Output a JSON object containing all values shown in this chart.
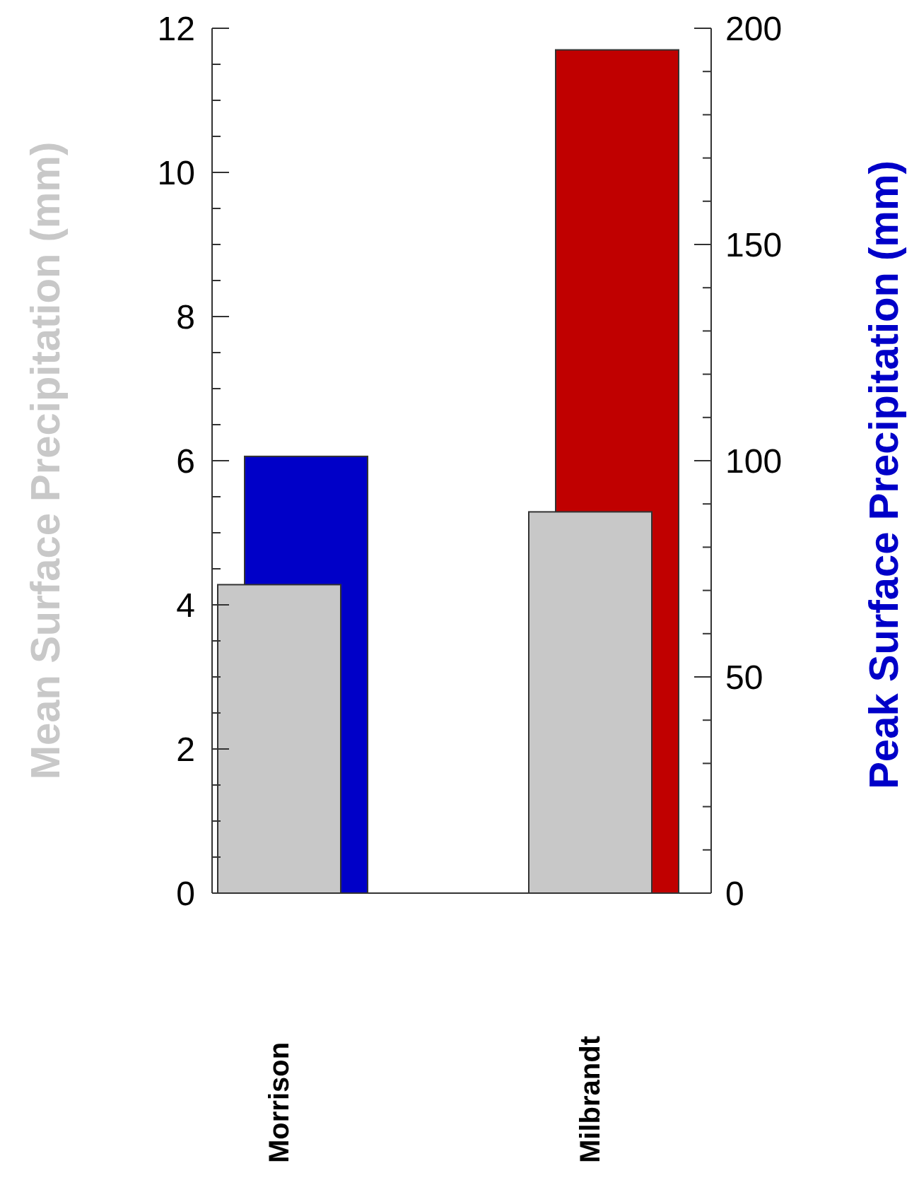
{
  "chart_data": {
    "type": "bar",
    "categories": [
      "Morrison",
      "Milbrandt"
    ],
    "series": [
      {
        "color": "#c8c8c8",
        "values": [
          4.28,
          5.29
        ]
      },
      {
        "axis": "y2",
        "colors": [
          "#0000c8",
          "#c00000"
        ],
        "values": [
          101,
          195
        ]
      }
    ],
    "ylabel": "Mean Surface Precipitation (mm)",
    "y2label": "Peak Surface Precipitation (mm)",
    "ylim": [
      0,
      12
    ],
    "yticks": [
      0,
      {
        "value": 0.5,
        "label": null
      },
      {
        "value": 1,
        "label": null
      },
      {
        "value": 1.5,
        "label": null
      },
      2,
      {
        "value": 2.5,
        "label": null
      },
      {
        "value": 3,
        "label": null
      },
      {
        "value": 3.5,
        "label": null
      },
      4,
      {
        "value": 4.5,
        "label": null
      },
      {
        "value": 5,
        "label": null
      },
      {
        "value": 5.5,
        "label": null
      },
      6,
      {
        "value": 6.5,
        "label": null
      },
      {
        "value": 7,
        "label": null
      },
      {
        "value": 7.5,
        "label": null
      },
      8,
      {
        "value": 8.5,
        "label": null
      },
      {
        "value": 9,
        "label": null
      },
      {
        "value": 9.5,
        "label": null
      },
      10,
      {
        "value": 10.5,
        "label": null
      },
      {
        "value": 11,
        "label": null
      },
      {
        "value": 11.5,
        "label": null
      },
      12
    ],
    "y2lim": [
      0,
      200
    ],
    "y2ticks": [
      0,
      {
        "value": 10,
        "label": null
      },
      {
        "value": 20,
        "label": null
      },
      {
        "value": 30,
        "label": null
      },
      {
        "value": 40,
        "label": null
      },
      50,
      {
        "value": 60,
        "label": null
      },
      {
        "value": 70,
        "label": null
      },
      {
        "value": 80,
        "label": null
      },
      {
        "value": 90,
        "label": null
      },
      100,
      {
        "value": 110,
        "label": null
      },
      {
        "value": 120,
        "label": null
      },
      {
        "value": 130,
        "label": null
      },
      {
        "value": 140,
        "label": null
      },
      150,
      {
        "value": 160,
        "label": null
      },
      {
        "value": 170,
        "label": null
      },
      {
        "value": 180,
        "label": null
      },
      {
        "value": 190,
        "label": null
      },
      200
    ],
    "grid": false
  }
}
